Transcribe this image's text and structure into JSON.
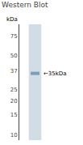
{
  "chart_data": {
    "type": "band",
    "title": "Western Blot",
    "ylabel": "kDa",
    "values": [
      35
    ],
    "color": "#7a9db5",
    "annotations": [
      {
        "text": "←35kDa",
        "y": 35
      }
    ],
    "ylim": [
      9,
      95
    ],
    "yticks": [
      75,
      50,
      37,
      25,
      20,
      15,
      10
    ],
    "log": "y",
    "grid": false,
    "tick_labels": "y"
  }
}
